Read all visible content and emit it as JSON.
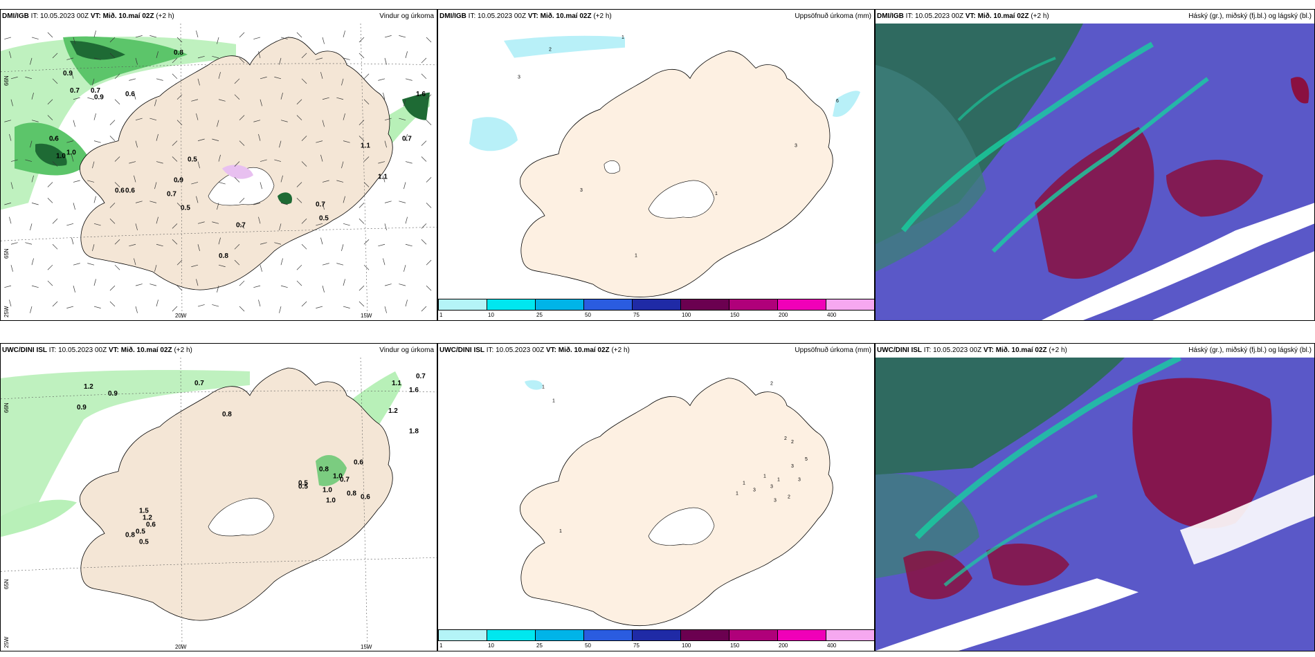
{
  "panels": [
    {
      "model": "DMI/IGB",
      "it_label": "IT:",
      "it_value": "10.05.2023 00Z",
      "vt_label": "VT:",
      "vt_value": "Mið. 10.maí 02Z",
      "lead": "(+2 h)",
      "product": "Vindur og úrkoma",
      "value_labels": [
        "0.8",
        "0.9",
        "0.7",
        "1.0",
        "0.6",
        "0.7",
        "0.6",
        "0.9",
        "1.0",
        "0.6",
        "0.5",
        "0.9",
        "0.5",
        "0.7",
        "0.6",
        "0.5",
        "0.7",
        "0.8",
        "1.6",
        "0.7",
        "1.1",
        "1.1",
        "0.7"
      ]
    },
    {
      "model": "DMI/IGB",
      "it_label": "IT:",
      "it_value": "10.05.2023 00Z",
      "vt_label": "VT:",
      "vt_value": "Mið. 10.maí 02Z",
      "lead": "(+2 h)",
      "product": "Uppsöfnuð úrkoma (mm)",
      "value_labels": [
        "2",
        "1",
        "3",
        "6",
        "3",
        "3",
        "1",
        "1"
      ]
    },
    {
      "model": "DMI/IGB",
      "it_label": "IT:",
      "it_value": "10.05.2023 00Z",
      "vt_label": "VT:",
      "vt_value": "Mið. 10.maí 02Z",
      "lead": "(+2 h)",
      "product": "Háský (gr.), miðský (fj.bl.) og lágský (bl.)"
    },
    {
      "model": "UWC/DINI ISL",
      "it_label": "IT:",
      "it_value": "10.05.2023 00Z",
      "vt_label": "VT:",
      "vt_value": "Mið. 10.maí 02Z",
      "lead": "(+2 h)",
      "product": "Vindur og úrkoma",
      "value_labels": [
        "1.2",
        "0.9",
        "0.9",
        "0.7",
        "0.8",
        "1.1",
        "1.6",
        "1.2",
        "1.0",
        "0.8",
        "0.6",
        "0.7",
        "1.0",
        "0.8",
        "1.0",
        "0.6",
        "0.5",
        "1.5",
        "1.2",
        "0.6",
        "0.5",
        "0.8",
        "0.5",
        "0.5",
        "0.7",
        "1.8"
      ]
    },
    {
      "model": "UWC/DINI ISL",
      "it_label": "IT:",
      "it_value": "10.05.2023 00Z",
      "vt_label": "VT:",
      "vt_value": "Mið. 10.maí 02Z",
      "lead": "(+2 h)",
      "product": "Uppsöfnuð úrkoma (mm)",
      "value_labels": [
        "2",
        "1",
        "1",
        "2",
        "2",
        "5",
        "3",
        "3",
        "1",
        "1",
        "3",
        "1",
        "3",
        "1",
        "2",
        "3",
        "1"
      ]
    },
    {
      "model": "UWC/DINI ISL",
      "it_label": "IT:",
      "it_value": "10.05.2023 00Z",
      "vt_label": "VT:",
      "vt_value": "Mið. 10.maí 02Z",
      "lead": "(+2 h)",
      "product": "Háský (gr.), miðský (fj.bl.) og lágský (bl.)"
    }
  ],
  "grid_labels": {
    "lat65": "65N",
    "lat66": "66N",
    "lon25": "25W",
    "lon20": "20W",
    "lon15": "15W"
  },
  "colorbar": {
    "ticks": [
      "1",
      "10",
      "25",
      "50",
      "75",
      "100",
      "150",
      "200",
      "400"
    ],
    "colors": [
      "#b4f4f7",
      "#00e7ef",
      "#00b4e8",
      "#2a5ce0",
      "#1f2aa6",
      "#6b0050",
      "#b0007a",
      "#f000b8",
      "#f6a8f0"
    ]
  },
  "colors": {
    "land": "#f4e6d6",
    "sea_precip_land": "#fdf0e2",
    "precip_light": "#b8f0b8",
    "precip_mid": "#5cc56a",
    "precip_dark": "#1e6a34",
    "accum_light": "#b8f0f8",
    "cloud_high": "#2f6a60",
    "cloud_mid": "#5a58c8",
    "cloud_low": "#8a1040",
    "cloud_teal": "#18d0a0"
  }
}
